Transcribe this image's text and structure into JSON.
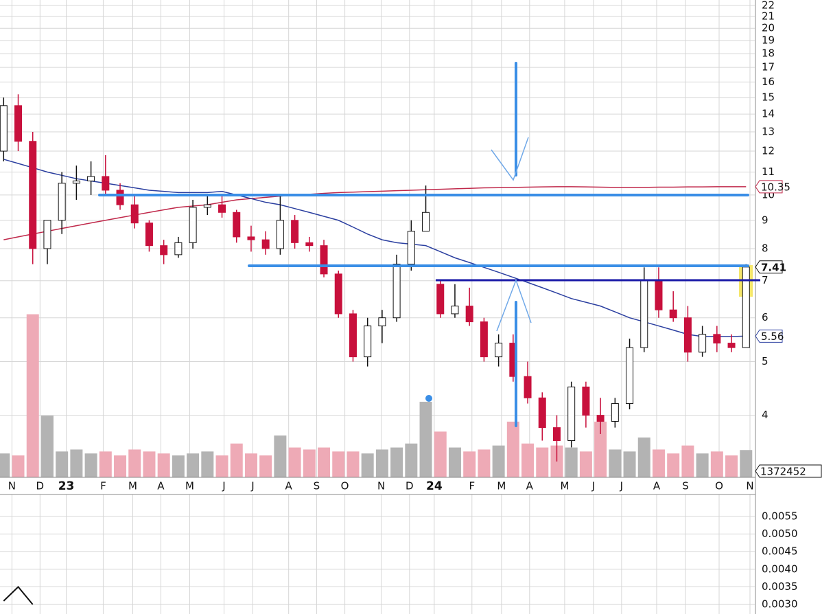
{
  "chart_data": [
    {
      "type": "candlestick",
      "log_scale": true,
      "grid": true,
      "ylim": [
        3.09,
        22.5
      ],
      "yticks": [
        4,
        5,
        6,
        7,
        8,
        9,
        10,
        11,
        12,
        13,
        14,
        15,
        16,
        17,
        18,
        19,
        20,
        21,
        22
      ],
      "xlim": [
        -0.25,
        51.6
      ],
      "xticks": [
        {
          "value": 0.57,
          "label": "N"
        },
        {
          "value": 2.5,
          "label": "D"
        },
        {
          "value": 4.3,
          "label": "23"
        },
        {
          "value": 6.84,
          "label": "F"
        },
        {
          "value": 8.87,
          "label": "M"
        },
        {
          "value": 10.8,
          "label": "A"
        },
        {
          "value": 12.78,
          "label": "M"
        },
        {
          "value": 15.14,
          "label": "J"
        },
        {
          "value": 17.12,
          "label": "J"
        },
        {
          "value": 19.58,
          "label": "A"
        },
        {
          "value": 21.5,
          "label": "S"
        },
        {
          "value": 23.44,
          "label": "O"
        },
        {
          "value": 25.94,
          "label": "N"
        },
        {
          "value": 27.88,
          "label": "D"
        },
        {
          "value": 29.58,
          "label": "24"
        },
        {
          "value": 32.17,
          "label": "F"
        },
        {
          "value": 34.2,
          "label": "M"
        },
        {
          "value": 36.13,
          "label": "A"
        },
        {
          "value": 38.54,
          "label": "M"
        },
        {
          "value": 40.52,
          "label": "J"
        },
        {
          "value": 42.45,
          "label": "J"
        },
        {
          "value": 44.86,
          "label": "A"
        },
        {
          "value": 46.84,
          "label": "S"
        },
        {
          "value": 49.15,
          "label": "O"
        },
        {
          "value": 51.27,
          "label": "N"
        }
      ],
      "x": [
        0,
        1,
        2,
        3,
        4,
        5,
        6,
        7,
        8,
        9,
        10,
        11,
        12,
        13,
        14,
        15,
        16,
        17,
        18,
        19,
        20,
        21,
        22,
        23,
        24,
        25,
        26,
        27,
        28,
        29,
        30,
        31,
        32,
        33,
        34,
        35,
        36,
        37,
        38,
        39,
        40,
        41,
        42,
        43,
        44,
        45,
        46,
        47,
        48,
        49,
        50,
        51
      ],
      "open": [
        12,
        14.5,
        12.5,
        8,
        9,
        10.5,
        10.6,
        10.8,
        10.2,
        9.6,
        8.9,
        8.1,
        7.8,
        8.2,
        9.5,
        9.6,
        9.3,
        8.4,
        8.3,
        8.0,
        9.0,
        8.2,
        8.1,
        7.2,
        6.1,
        5.1,
        5.8,
        6.0,
        7.5,
        8.6,
        6.9,
        6.1,
        6.3,
        5.9,
        5.1,
        5.4,
        4.7,
        4.3,
        3.8,
        3.6,
        4.5,
        4.0,
        3.9,
        4.2,
        5.3,
        7.0,
        6.2,
        6.0,
        5.2,
        5.6,
        5.4,
        5.3
      ],
      "high": [
        15,
        15.2,
        13,
        9,
        11,
        11.3,
        11.5,
        11.8,
        10.5,
        10,
        9,
        8.3,
        8.4,
        9.8,
        10,
        10,
        9.4,
        8.8,
        8.6,
        10,
        9.2,
        8.4,
        8.3,
        7.3,
        6.2,
        6.0,
        6.2,
        7.8,
        9,
        10.4,
        7,
        6.9,
        6.8,
        6,
        5.6,
        5.6,
        5,
        4.4,
        4,
        4.6,
        4.6,
        4.3,
        4.3,
        5.5,
        7.4,
        7.4,
        6.7,
        6.3,
        5.8,
        5.8,
        5.6,
        7.5
      ],
      "low": [
        11.5,
        12,
        7.5,
        7.5,
        8.5,
        9.8,
        10,
        10,
        9.4,
        8.7,
        7.9,
        7.5,
        7.7,
        8,
        9.2,
        9.1,
        8.2,
        7.9,
        7.8,
        7.8,
        8,
        7.9,
        7.1,
        6,
        5,
        4.9,
        5.4,
        5.9,
        7.3,
        8.6,
        6,
        6,
        5.8,
        5,
        4.9,
        4.6,
        4.2,
        3.6,
        3.3,
        3.5,
        3.8,
        3.7,
        3.8,
        4.1,
        5.2,
        6.0,
        5.9,
        5.0,
        5.1,
        5.2,
        5.2,
        5.3
      ],
      "close": [
        14.5,
        12.5,
        8,
        9,
        10.5,
        10.6,
        10.8,
        10.2,
        9.6,
        8.9,
        8.1,
        7.8,
        8.2,
        9.5,
        9.6,
        9.3,
        8.4,
        8.3,
        8.0,
        9.0,
        8.2,
        8.1,
        7.2,
        6.1,
        5.1,
        5.8,
        6.0,
        7.5,
        8.6,
        9.3,
        6.1,
        6.3,
        5.9,
        5.1,
        5.4,
        4.7,
        4.3,
        3.8,
        3.6,
        4.5,
        4.0,
        3.9,
        4.2,
        5.3,
        7.0,
        6.2,
        6.0,
        5.2,
        5.6,
        5.4,
        5.3,
        7.41
      ],
      "up_color": "#ffffff",
      "down_color": "#c8103c",
      "ma_long": {
        "color": "#c0284a",
        "values": [
          8.3,
          8.4,
          8.5,
          8.6,
          8.7,
          8.8,
          8.9,
          9.0,
          9.1,
          9.2,
          9.3,
          9.4,
          9.5,
          9.55,
          9.6,
          9.7,
          9.8,
          9.85,
          9.9,
          9.95,
          10.0,
          10.03,
          10.07,
          10.1,
          10.12,
          10.14,
          10.16,
          10.18,
          10.2,
          10.22,
          10.24,
          10.26,
          10.28,
          10.3,
          10.31,
          10.32,
          10.33,
          10.34,
          10.35,
          10.35,
          10.34,
          10.33,
          10.32,
          10.32,
          10.32,
          10.33,
          10.33,
          10.34,
          10.34,
          10.35,
          10.35,
          10.35
        ]
      },
      "ma_short": {
        "color": "#2b3fa0",
        "values": [
          11.6,
          11.4,
          11.2,
          11.0,
          10.85,
          10.7,
          10.6,
          10.5,
          10.4,
          10.3,
          10.2,
          10.15,
          10.1,
          10.1,
          10.1,
          10.15,
          10.0,
          9.85,
          9.7,
          9.6,
          9.45,
          9.3,
          9.15,
          9.0,
          8.75,
          8.5,
          8.3,
          8.2,
          8.15,
          8.1,
          7.9,
          7.7,
          7.55,
          7.4,
          7.25,
          7.1,
          6.95,
          6.8,
          6.65,
          6.5,
          6.4,
          6.3,
          6.15,
          6.0,
          5.9,
          5.8,
          5.7,
          5.6,
          5.55,
          5.55,
          5.55,
          5.56
        ]
      },
      "volume": {
        "ylim": [
          0,
          24000000
        ],
        "up_color": "#b3b3b3",
        "down_color": "#eeaab6",
        "values": [
          1200000,
          1100000,
          8200000,
          3100000,
          1300000,
          1400000,
          1200000,
          1300000,
          1100000,
          1400000,
          1300000,
          1200000,
          1100000,
          1200000,
          1300000,
          1100000,
          1700000,
          1200000,
          1100000,
          2100000,
          1500000,
          1400000,
          1500000,
          1300000,
          1300000,
          1200000,
          1400000,
          1500000,
          1700000,
          3800000,
          2300000,
          1500000,
          1300000,
          1400000,
          1600000,
          2800000,
          1700000,
          1500000,
          1600000,
          1500000,
          1300000,
          2800000,
          1400000,
          1300000,
          2000000,
          1400000,
          1200000,
          1600000,
          1200000,
          1300000,
          1100000,
          1372452
        ]
      }
    },
    {
      "type": "line",
      "ylim": [
        0.00273,
        0.00583
      ],
      "yticks": [
        {
          "value": 0.0055,
          "label": "0.0055"
        },
        {
          "value": 0.005,
          "label": "0.0050"
        },
        {
          "value": 0.0045,
          "label": "0.0045"
        },
        {
          "value": 0.004,
          "label": "0.0040"
        },
        {
          "value": 0.0035,
          "label": "0.0035"
        },
        {
          "value": 0.003,
          "label": "0.0030"
        }
      ],
      "x": [
        0,
        1,
        2
      ],
      "values": [
        0.0031,
        0.0035,
        0.003
      ],
      "color": "#111111"
    }
  ]
}
